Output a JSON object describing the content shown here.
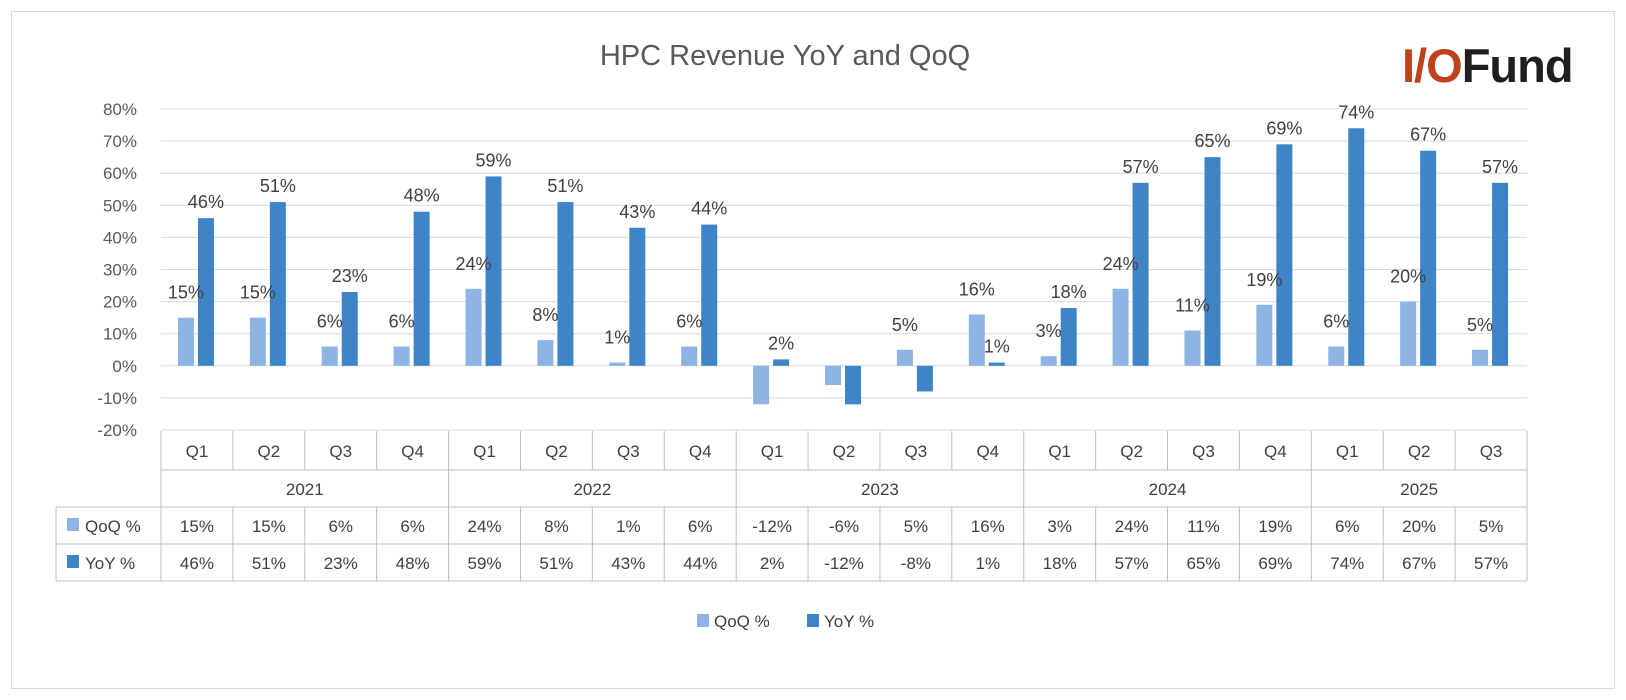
{
  "chart_data": {
    "type": "bar",
    "title": "HPC Revenue YoY and QoQ",
    "years": [
      "2021",
      "2022",
      "2023",
      "2024",
      "2025"
    ],
    "categories": [
      "Q1",
      "Q2",
      "Q3",
      "Q4",
      "Q1",
      "Q2",
      "Q3",
      "Q4",
      "Q1",
      "Q2",
      "Q3",
      "Q4",
      "Q1",
      "Q2",
      "Q3",
      "Q4",
      "Q1",
      "Q2",
      "Q3"
    ],
    "series": [
      {
        "name": "QoQ %",
        "color": "#8db4e3",
        "values": [
          15,
          15,
          6,
          6,
          24,
          8,
          1,
          6,
          -12,
          -6,
          5,
          16,
          3,
          24,
          11,
          19,
          6,
          20,
          5
        ],
        "labels": [
          "15%",
          "15%",
          "6%",
          "6%",
          "24%",
          "8%",
          "1%",
          "6%",
          "-12%",
          "-6%",
          "5%",
          "16%",
          "3%",
          "24%",
          "11%",
          "19%",
          "6%",
          "20%",
          "5%"
        ]
      },
      {
        "name": "YoY %",
        "color": "#3d85c6",
        "values": [
          46,
          51,
          23,
          48,
          59,
          51,
          43,
          44,
          2,
          -12,
          -8,
          1,
          18,
          57,
          65,
          69,
          74,
          67,
          57
        ],
        "labels": [
          "46%",
          "51%",
          "23%",
          "48%",
          "59%",
          "51%",
          "43%",
          "44%",
          "2%",
          "-12%",
          "-8%",
          "1%",
          "18%",
          "57%",
          "65%",
          "69%",
          "74%",
          "67%",
          "57%"
        ]
      }
    ],
    "point_labels": {
      "QoQ %": [
        "15%",
        "15%",
        "6%",
        "6%",
        "24%",
        "8%",
        "1%",
        "6%",
        "",
        "",
        "5%",
        "16%",
        "3%",
        "24%",
        "11%",
        "19%",
        "6%",
        "20%",
        "5%"
      ],
      "YoY %": [
        "46%",
        "51%",
        "23%",
        "48%",
        "59%",
        "51%",
        "43%",
        "44%",
        "2%",
        "",
        "",
        "1%",
        "18%",
        "57%",
        "65%",
        "69%",
        "74%",
        "67%",
        "57%"
      ]
    },
    "ylim": [
      -20,
      80
    ],
    "yticks": [
      "-20%",
      "-10%",
      "0%",
      "10%",
      "20%",
      "30%",
      "40%",
      "50%",
      "60%",
      "70%",
      "80%"
    ],
    "grid": true,
    "legend": "bottom",
    "data_table": true
  },
  "branding": {
    "logo_prefix": "I/O",
    "logo_suffix": "Fund",
    "accent_color": "#c0411c"
  }
}
